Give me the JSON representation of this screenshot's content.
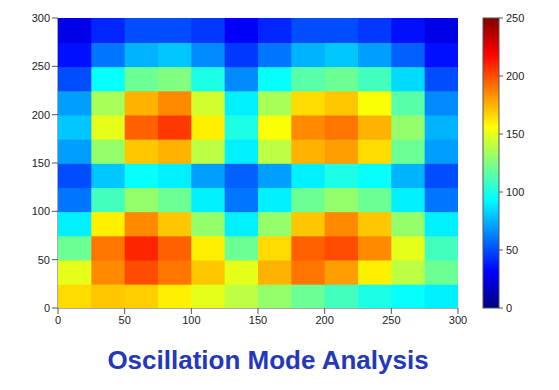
{
  "chart_data": {
    "type": "heatmap",
    "title": "Oscillation Mode Analysis",
    "x": [
      12.5,
      37.5,
      62.5,
      87.5,
      112.5,
      137.5,
      162.5,
      187.5,
      212.5,
      237.5,
      262.5,
      287.5
    ],
    "y": [
      12.5,
      37.5,
      62.5,
      87.5,
      112.5,
      137.5,
      162.5,
      187.5,
      212.5,
      237.5,
      262.5,
      287.5
    ],
    "cells": [
      [
        165,
        170,
        168,
        160,
        150,
        140,
        130,
        120,
        110,
        100,
        95,
        90
      ],
      [
        150,
        185,
        200,
        190,
        170,
        150,
        175,
        190,
        180,
        160,
        140,
        120
      ],
      [
        120,
        190,
        210,
        195,
        160,
        120,
        165,
        195,
        200,
        185,
        150,
        110
      ],
      [
        90,
        160,
        185,
        170,
        130,
        90,
        130,
        170,
        185,
        170,
        130,
        90
      ],
      [
        60,
        110,
        130,
        120,
        90,
        60,
        90,
        120,
        130,
        120,
        90,
        60
      ],
      [
        50,
        80,
        95,
        90,
        70,
        55,
        70,
        90,
        100,
        95,
        75,
        50
      ],
      [
        70,
        130,
        170,
        175,
        140,
        90,
        140,
        175,
        180,
        165,
        120,
        70
      ],
      [
        80,
        150,
        195,
        205,
        160,
        100,
        155,
        185,
        190,
        175,
        130,
        75
      ],
      [
        70,
        135,
        175,
        185,
        145,
        90,
        135,
        165,
        170,
        155,
        115,
        65
      ],
      [
        50,
        95,
        120,
        125,
        100,
        65,
        95,
        115,
        120,
        110,
        85,
        50
      ],
      [
        35,
        60,
        75,
        80,
        65,
        45,
        60,
        75,
        80,
        70,
        55,
        35
      ],
      [
        25,
        40,
        50,
        50,
        45,
        30,
        40,
        50,
        50,
        45,
        35,
        25
      ]
    ],
    "xlim": [
      0,
      300
    ],
    "xticks": [
      0,
      50,
      100,
      150,
      200,
      250,
      300
    ],
    "ylim": [
      0,
      300
    ],
    "yticks": [
      0,
      50,
      100,
      150,
      200,
      250,
      300
    ],
    "colorbar": {
      "range": [
        0,
        250
      ],
      "ticks": [
        0,
        50,
        100,
        150,
        200,
        250
      ]
    }
  }
}
